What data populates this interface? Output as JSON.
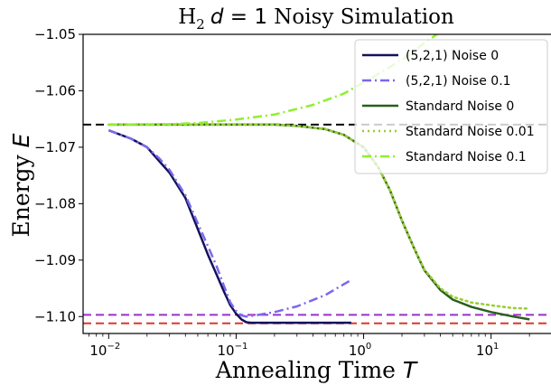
{
  "chart_data": {
    "type": "line",
    "title": {
      "prefix": "H",
      "subscript": "2",
      "variable": "d",
      "operator": " = 1 ",
      "suffix": "Noisy Simulation"
    },
    "xlabel": {
      "text": "Annealing Time ",
      "variable": "T"
    },
    "ylabel": {
      "text": "Energy ",
      "variable": "E"
    },
    "xscale": "log",
    "xlim": [
      0.0063,
      30
    ],
    "ylim": [
      -1.103,
      -1.05
    ],
    "xticks": [
      {
        "value": 0.01,
        "base": "10",
        "exp": "−2"
      },
      {
        "value": 0.1,
        "base": "10",
        "exp": "−1"
      },
      {
        "value": 1,
        "base": "10",
        "exp": "0"
      },
      {
        "value": 10,
        "base": "10",
        "exp": "1"
      }
    ],
    "yticks": [
      {
        "value": -1.05,
        "label": "−1.05"
      },
      {
        "value": -1.06,
        "label": "−1.06"
      },
      {
        "value": -1.07,
        "label": "−1.07"
      },
      {
        "value": -1.08,
        "label": "−1.08"
      },
      {
        "value": -1.09,
        "label": "−1.09"
      },
      {
        "value": -1.1,
        "label": "−1.10"
      }
    ],
    "legend_position": "top-right",
    "hlines": [
      {
        "y": -1.066,
        "color": "#000000",
        "dash": "9 5"
      },
      {
        "y": -1.0997,
        "color": "#9b30c8",
        "dash": "9 5"
      },
      {
        "y": -1.1012,
        "color": "#e0362b",
        "dash": "9 5"
      }
    ],
    "series": [
      {
        "name": "(5,2,1) Noise 0",
        "color": "#12125c",
        "dash": "solid",
        "width": 2.5,
        "x": [
          0.01,
          0.015,
          0.02,
          0.025,
          0.03,
          0.04,
          0.05,
          0.06,
          0.07,
          0.08,
          0.09,
          0.1,
          0.11,
          0.12,
          0.13,
          0.15,
          0.2,
          0.3,
          0.5,
          0.8
        ],
        "y": [
          -1.067,
          -1.0685,
          -1.07,
          -1.0725,
          -1.0745,
          -1.079,
          -1.0845,
          -1.089,
          -1.0925,
          -1.0955,
          -1.098,
          -1.0995,
          -1.1005,
          -1.101,
          -1.1011,
          -1.1011,
          -1.1011,
          -1.1011,
          -1.1011,
          -1.1011
        ]
      },
      {
        "name": "(5,2,1) Noise 0.1",
        "color": "#7b68ee",
        "dash": "dashdot",
        "width": 2.5,
        "x": [
          0.01,
          0.015,
          0.02,
          0.025,
          0.03,
          0.04,
          0.05,
          0.06,
          0.07,
          0.08,
          0.09,
          0.1,
          0.11,
          0.12,
          0.13,
          0.15,
          0.2,
          0.3,
          0.5,
          0.8
        ],
        "y": [
          -1.067,
          -1.0685,
          -1.07,
          -1.072,
          -1.074,
          -1.0785,
          -1.0835,
          -1.0875,
          -1.091,
          -1.0945,
          -1.0975,
          -1.099,
          -1.0998,
          -1.1,
          -1.0999,
          -1.0997,
          -1.0992,
          -1.0982,
          -1.0962,
          -1.0935
        ]
      },
      {
        "name": "Standard Noise 0",
        "color": "#2a5e1e",
        "dash": "solid",
        "width": 2.5,
        "x": [
          0.01,
          0.05,
          0.1,
          0.2,
          0.3,
          0.5,
          0.7,
          1.0,
          1.3,
          1.6,
          2.0,
          2.5,
          3.0,
          4.0,
          5.0,
          7.0,
          10,
          15,
          20
        ],
        "y": [
          -1.066,
          -1.066,
          -1.066,
          -1.066,
          -1.0662,
          -1.0668,
          -1.0678,
          -1.07,
          -1.0735,
          -1.0775,
          -1.083,
          -1.088,
          -1.0918,
          -1.0953,
          -1.097,
          -1.0983,
          -1.0992,
          -1.1,
          -1.1005
        ]
      },
      {
        "name": "Standard Noise 0.01",
        "color": "#9acd32",
        "dash": "dotted",
        "width": 2.5,
        "x": [
          0.01,
          0.05,
          0.1,
          0.2,
          0.3,
          0.5,
          0.7,
          1.0,
          1.3,
          1.6,
          2.0,
          2.5,
          3.0,
          4.0,
          5.0,
          7.0,
          10,
          15,
          20
        ],
        "y": [
          -1.066,
          -1.066,
          -1.066,
          -1.066,
          -1.0662,
          -1.0668,
          -1.0678,
          -1.07,
          -1.0735,
          -1.0775,
          -1.083,
          -1.088,
          -1.0917,
          -1.095,
          -1.0965,
          -1.0975,
          -1.098,
          -1.0985,
          -1.0986
        ]
      },
      {
        "name": "Standard Noise 0.1",
        "color": "#8ff02e",
        "dash": "dashdot",
        "width": 2.5,
        "x": [
          0.01,
          0.03,
          0.05,
          0.1,
          0.2,
          0.4,
          0.7,
          1.0,
          1.5,
          2.0,
          2.5,
          3.0,
          3.5,
          4.0
        ],
        "y": [
          -1.066,
          -1.0659,
          -1.0657,
          -1.0651,
          -1.0642,
          -1.0625,
          -1.0605,
          -1.0585,
          -1.0562,
          -1.0545,
          -1.053,
          -1.0515,
          -1.0505,
          -1.0495
        ]
      }
    ]
  }
}
